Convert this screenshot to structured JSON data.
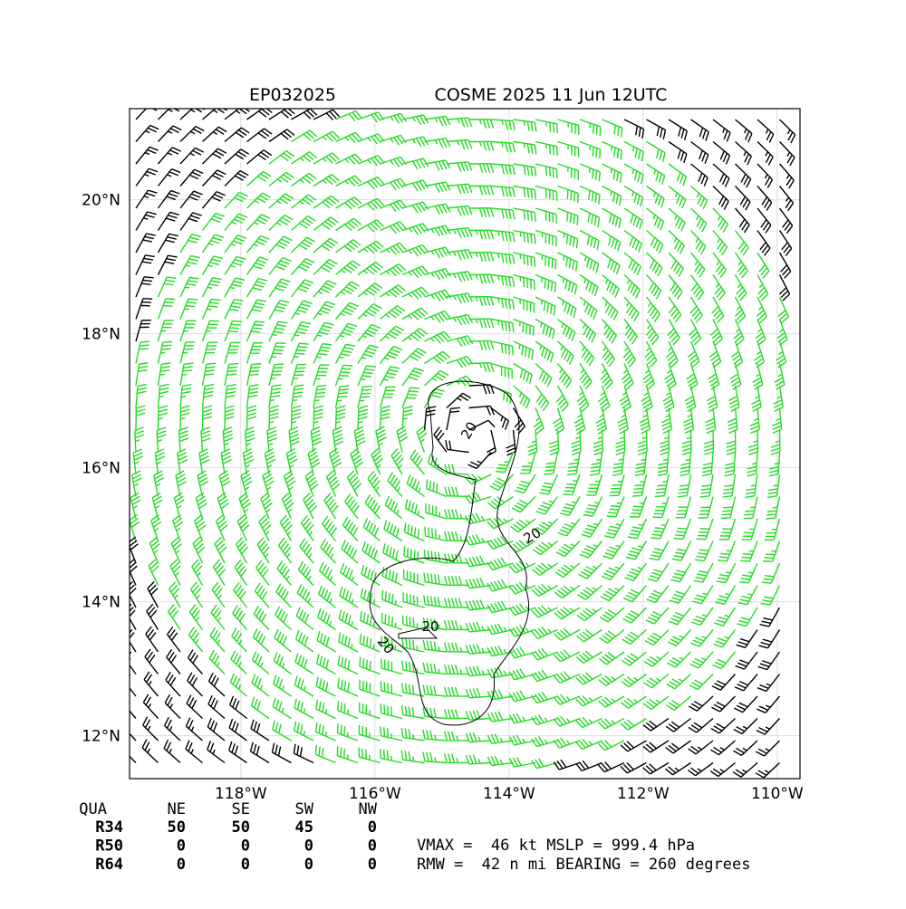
{
  "header": {
    "storm_id": "EP032025",
    "title": "COSME 2025 11 Jun 12UTC"
  },
  "map": {
    "lonlim": [
      -119.66,
      -109.66
    ],
    "latlim": [
      11.36,
      21.36
    ],
    "lon_ticks": [
      {
        "value": -118,
        "label": "118°W"
      },
      {
        "value": -116,
        "label": "116°W"
      },
      {
        "value": -114,
        "label": "114°W"
      },
      {
        "value": -112,
        "label": "112°W"
      },
      {
        "value": -110,
        "label": "110°W"
      }
    ],
    "lat_ticks": [
      {
        "value": 20,
        "label": "20°N"
      },
      {
        "value": 18,
        "label": "18°N"
      },
      {
        "value": 16,
        "label": "16°N"
      },
      {
        "value": 14,
        "label": "14°N"
      },
      {
        "value": 12,
        "label": "12°N"
      }
    ],
    "contour_labels": [
      "20",
      "20",
      "20",
      "20"
    ]
  },
  "table": {
    "header": [
      "QUA",
      "NE",
      "SE",
      "SW",
      "NW"
    ],
    "rows": [
      [
        "R34",
        "50",
        "50",
        "45",
        "0"
      ],
      [
        "R50",
        "0",
        "0",
        "0",
        "0"
      ],
      [
        "R64",
        "0",
        "0",
        "0",
        "0"
      ]
    ]
  },
  "info": [
    "VMAX =  46 kt MSLP = 999.4 hPa",
    "RMW =  42 n mi BEARING = 260 degrees"
  ]
}
